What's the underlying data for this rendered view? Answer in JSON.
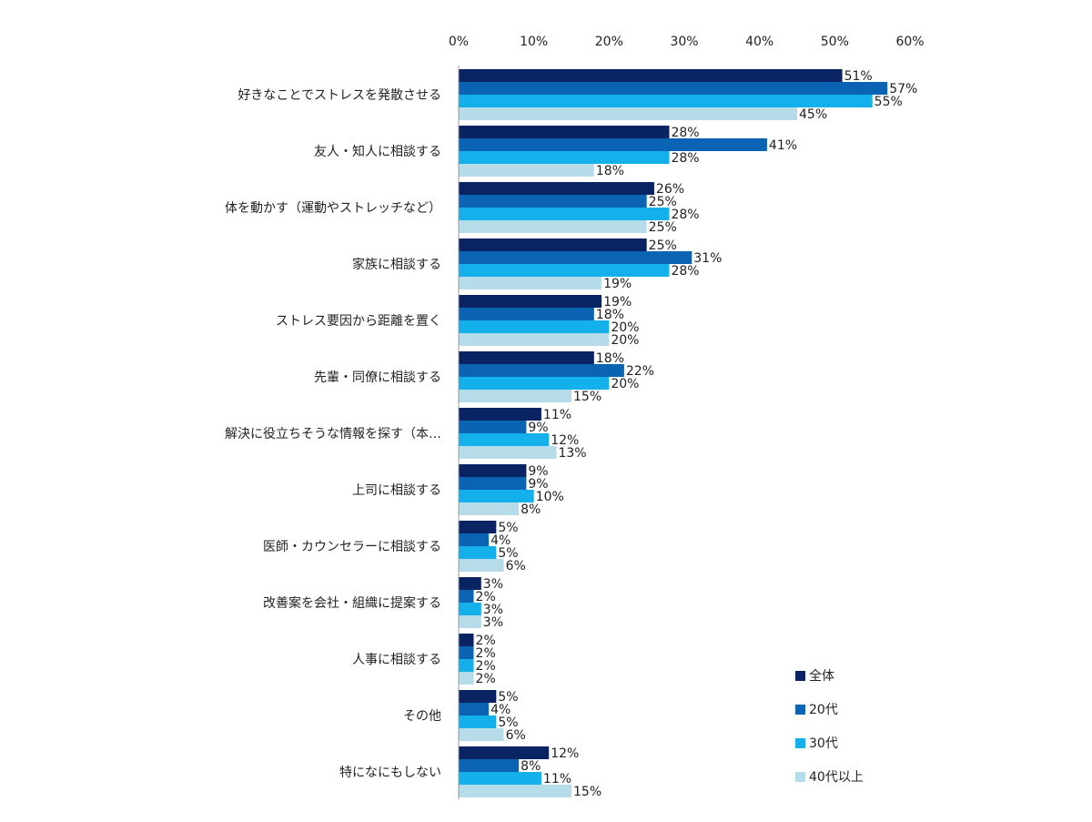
{
  "chart_data": {
    "type": "bar",
    "orientation": "horizontal",
    "x_ticks": [
      "0%",
      "10%",
      "20%",
      "30%",
      "40%",
      "50%",
      "60%"
    ],
    "xlim": [
      0,
      60
    ],
    "legend_position": "bottom-right",
    "categories": [
      "好きなことでストレスを発散させる",
      "友人・知人に相談する",
      "体を動かす（運動やストレッチなど）",
      "家族に相談する",
      "ストレス要因から距離を置く",
      "先輩・同僚に相談する",
      "解決に役立ちそうな情報を探す（本…",
      "上司に相談する",
      "医師・カウンセラーに相談する",
      "改善案を会社・組織に提案する",
      "人事に相談する",
      "その他",
      "特になにもしない"
    ],
    "series": [
      {
        "name": "全体",
        "color": "#0a2463",
        "values": [
          51,
          28,
          26,
          25,
          19,
          18,
          11,
          9,
          5,
          3,
          2,
          5,
          12
        ]
      },
      {
        "name": "20代",
        "color": "#0b63b4",
        "values": [
          57,
          41,
          25,
          31,
          18,
          22,
          9,
          9,
          4,
          2,
          2,
          4,
          8
        ]
      },
      {
        "name": "30代",
        "color": "#13b0ec",
        "values": [
          55,
          28,
          28,
          28,
          20,
          20,
          12,
          10,
          5,
          3,
          2,
          5,
          11
        ]
      },
      {
        "name": "40代以上",
        "color": "#b7dce9",
        "values": [
          45,
          18,
          25,
          19,
          20,
          15,
          13,
          8,
          6,
          3,
          2,
          6,
          15
        ]
      }
    ],
    "value_suffix": "%"
  }
}
